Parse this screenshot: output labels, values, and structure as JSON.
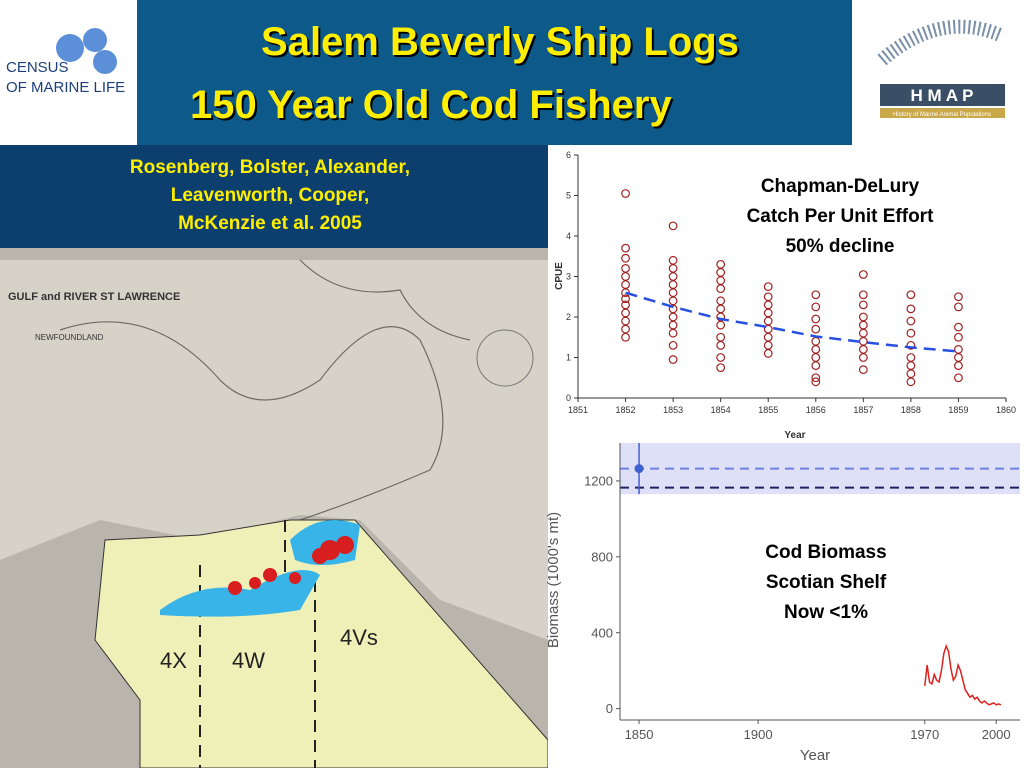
{
  "slide": {
    "logo_left": [
      "CENSUS",
      "OF MARINE LIFE"
    ],
    "title": [
      "Salem Beverly Ship Logs",
      "150 Year Old Cod Fishery"
    ],
    "logo_right": [
      "H M A P",
      "History of Marine Animal Populations"
    ],
    "citation": [
      "Rosenberg, Bolster, Alexander,",
      "Leavenworth, Cooper,",
      "McKenzie et al. 2005"
    ],
    "map_labels": [
      "GULF and RIVER ST LAWRENCE",
      "NEWFOUNDLAND",
      "4X",
      "4W",
      "4Vs"
    ]
  },
  "chart_data": [
    {
      "type": "scatter",
      "xlabel": "Year",
      "ylabel": "CPUE",
      "annotations": [
        "Chapman-DeLury",
        "Catch Per Unit Effort",
        "50% decline"
      ],
      "xlim": [
        1851,
        1860
      ],
      "ylim": [
        0,
        6
      ],
      "xticks": [
        1851,
        1852,
        1853,
        1854,
        1855,
        1856,
        1857,
        1858,
        1859,
        1860
      ],
      "yticks": [
        0,
        1,
        2,
        3,
        4,
        5,
        6
      ],
      "series": [
        {
          "kind": "points",
          "color": "#a02020",
          "x": [
            1852,
            1852,
            1852,
            1852,
            1852,
            1852,
            1852,
            1852,
            1852,
            1852,
            1852,
            1852,
            1852,
            1853,
            1853,
            1853,
            1853,
            1853,
            1853,
            1853,
            1853,
            1853,
            1853,
            1853,
            1853,
            1853,
            1854,
            1854,
            1854,
            1854,
            1854,
            1854,
            1854,
            1854,
            1854,
            1854,
            1854,
            1854,
            1855,
            1855,
            1855,
            1855,
            1855,
            1855,
            1855,
            1855,
            1855,
            1856,
            1856,
            1856,
            1856,
            1856,
            1856,
            1856,
            1856,
            1856,
            1856,
            1857,
            1857,
            1857,
            1857,
            1857,
            1857,
            1857,
            1857,
            1857,
            1857,
            1858,
            1858,
            1858,
            1858,
            1858,
            1858,
            1858,
            1858,
            1858,
            1859,
            1859,
            1859,
            1859,
            1859,
            1859,
            1859,
            1859
          ],
          "y": [
            5.05,
            3.7,
            3.45,
            3.2,
            3.0,
            2.8,
            2.6,
            2.45,
            2.3,
            2.1,
            1.9,
            1.7,
            1.5,
            4.25,
            3.4,
            3.2,
            3.0,
            2.8,
            2.6,
            2.4,
            2.2,
            2.0,
            1.8,
            1.6,
            1.3,
            0.95,
            3.3,
            3.1,
            2.9,
            2.7,
            2.4,
            2.2,
            2.0,
            1.8,
            1.5,
            1.3,
            1.0,
            0.75,
            2.75,
            2.5,
            2.3,
            2.1,
            1.9,
            1.7,
            1.5,
            1.3,
            1.1,
            2.55,
            2.25,
            1.95,
            1.7,
            1.4,
            1.2,
            1.0,
            0.8,
            0.5,
            0.4,
            3.05,
            2.55,
            2.3,
            2.0,
            1.8,
            1.6,
            1.4,
            1.2,
            1.0,
            0.7,
            2.55,
            2.2,
            1.9,
            1.6,
            1.3,
            1.0,
            0.8,
            0.6,
            0.4,
            2.5,
            2.25,
            1.75,
            1.5,
            1.2,
            1.0,
            0.8,
            0.5
          ]
        },
        {
          "kind": "dashed-line",
          "color": "#2850e0",
          "x": [
            1852,
            1853,
            1854,
            1855,
            1856,
            1857,
            1858,
            1859
          ],
          "y": [
            2.6,
            2.25,
            1.95,
            1.75,
            1.52,
            1.38,
            1.25,
            1.15
          ]
        }
      ]
    },
    {
      "type": "line",
      "xlabel": "Year",
      "ylabel": "Biomass (1000's mt)",
      "annotations": [
        "Cod Biomass",
        "Scotian Shelf",
        "Now <1%"
      ],
      "xlim": [
        1842,
        2010
      ],
      "ylim": [
        -60,
        1400
      ],
      "xticks": [
        1850,
        1900,
        1970,
        2000
      ],
      "yticks": [
        0,
        400,
        800,
        1200
      ],
      "band": [
        1130,
        1400
      ],
      "reference_lines": [
        {
          "value": 1265,
          "color": "#7080e0"
        },
        {
          "value": 1165,
          "color": "#202060"
        }
      ],
      "series": [
        {
          "kind": "point",
          "color": "#4060d0",
          "x": [
            1850
          ],
          "y": [
            1265
          ],
          "error": [
            135
          ]
        },
        {
          "kind": "line",
          "color": "#e02020",
          "x": [
            1970,
            1971,
            1972,
            1973,
            1974,
            1975,
            1976,
            1977,
            1978,
            1979,
            1980,
            1981,
            1982,
            1983,
            1984,
            1985,
            1986,
            1987,
            1988,
            1989,
            1990,
            1991,
            1992,
            1993,
            1994,
            1995,
            1996,
            1997,
            1998,
            1999,
            2000,
            2001,
            2002
          ],
          "y": [
            120,
            230,
            140,
            130,
            180,
            150,
            140,
            200,
            290,
            330,
            300,
            210,
            150,
            170,
            230,
            200,
            150,
            100,
            80,
            60,
            70,
            50,
            60,
            40,
            30,
            40,
            30,
            20,
            25,
            30,
            20,
            25,
            20
          ]
        }
      ]
    }
  ]
}
